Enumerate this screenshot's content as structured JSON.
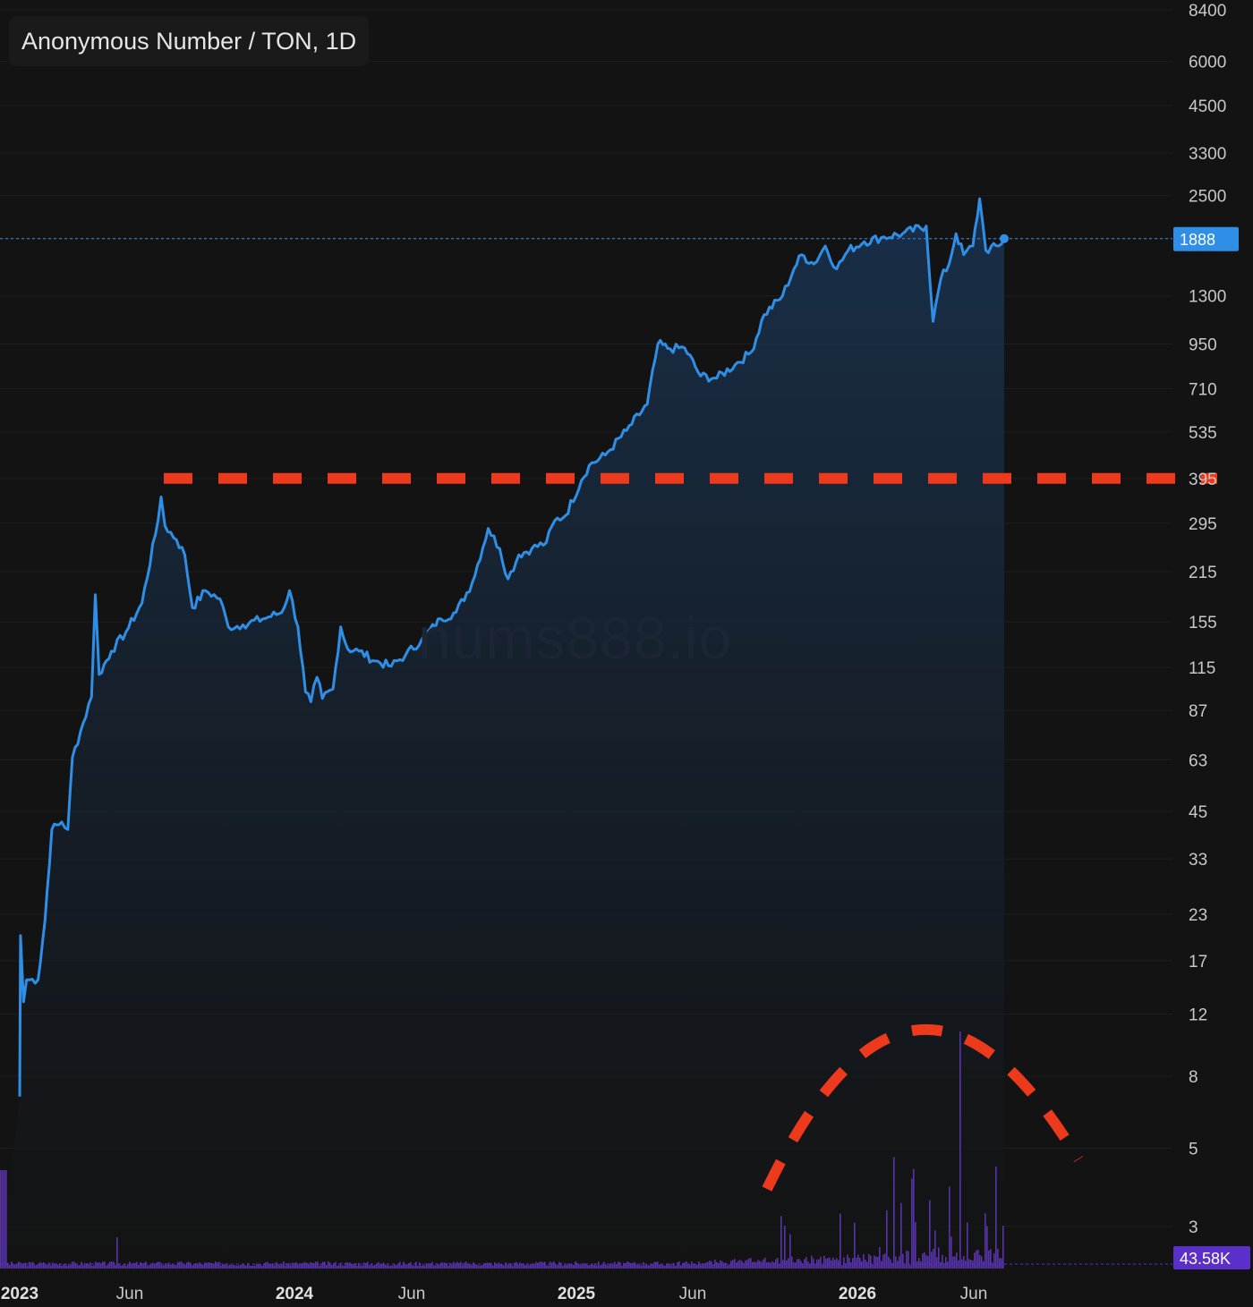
{
  "legend": {
    "title": "Anonymous Number / TON, 1D"
  },
  "watermark": "nums888.io",
  "colors": {
    "background": "#131313",
    "price_line": "#2f8fe6",
    "area_fill_top": "#1a3452",
    "volume": "#6a3ccf",
    "volume_tag": "#5b2fc9",
    "annotation": "#ee3a1c",
    "grid": "#1e1e1e"
  },
  "chart_data": {
    "type": "line",
    "y_scale": "log",
    "ylim": [
      2.4,
      8400
    ],
    "y_ticks": [
      "8400",
      "6000",
      "4500",
      "3300",
      "2500",
      "1888",
      "1300",
      "950",
      "710",
      "535",
      "395",
      "295",
      "215",
      "155",
      "115",
      "87",
      "63",
      "45",
      "33",
      "23",
      "17",
      "12",
      "8",
      "5",
      "3"
    ],
    "x_ticks": [
      {
        "label": "2023",
        "year": true
      },
      {
        "label": "Jun",
        "year": false
      },
      {
        "label": "2024",
        "year": true
      },
      {
        "label": "Jun",
        "year": false
      },
      {
        "label": "2025",
        "year": true
      },
      {
        "label": "Jun",
        "year": false
      },
      {
        "label": "2026",
        "year": true
      },
      {
        "label": "Jun",
        "year": false
      }
    ],
    "series": [
      {
        "values": [
          {
            "x": "2023-01-01",
            "y": 7
          },
          {
            "x": "2023-01-02",
            "y": 20
          },
          {
            "x": "2023-01-06",
            "y": 13
          },
          {
            "x": "2023-01-10",
            "y": 15
          },
          {
            "x": "2023-01-25",
            "y": 15
          },
          {
            "x": "2023-02-03",
            "y": 22
          },
          {
            "x": "2023-02-12",
            "y": 40
          },
          {
            "x": "2023-02-25",
            "y": 42
          },
          {
            "x": "2023-03-05",
            "y": 40
          },
          {
            "x": "2023-03-11",
            "y": 64
          },
          {
            "x": "2023-03-25",
            "y": 80
          },
          {
            "x": "2023-04-05",
            "y": 95
          },
          {
            "x": "2023-04-10",
            "y": 185
          },
          {
            "x": "2023-04-15",
            "y": 110
          },
          {
            "x": "2023-05-01",
            "y": 128
          },
          {
            "x": "2023-05-20",
            "y": 145
          },
          {
            "x": "2023-06-10",
            "y": 175
          },
          {
            "x": "2023-07-01",
            "y": 300
          },
          {
            "x": "2023-07-05",
            "y": 350
          },
          {
            "x": "2023-07-10",
            "y": 290
          },
          {
            "x": "2023-07-25",
            "y": 265
          },
          {
            "x": "2023-08-05",
            "y": 240
          },
          {
            "x": "2023-08-15",
            "y": 170
          },
          {
            "x": "2023-09-01",
            "y": 190
          },
          {
            "x": "2023-09-20",
            "y": 180
          },
          {
            "x": "2023-10-01",
            "y": 150
          },
          {
            "x": "2023-10-20",
            "y": 152
          },
          {
            "x": "2023-11-15",
            "y": 158
          },
          {
            "x": "2023-12-10",
            "y": 165
          },
          {
            "x": "2023-12-20",
            "y": 190
          },
          {
            "x": "2023-12-31",
            "y": 150
          },
          {
            "x": "2024-01-10",
            "y": 98
          },
          {
            "x": "2024-01-17",
            "y": 92
          },
          {
            "x": "2024-01-25",
            "y": 108
          },
          {
            "x": "2024-02-01",
            "y": 94
          },
          {
            "x": "2024-02-15",
            "y": 100
          },
          {
            "x": "2024-02-25",
            "y": 150
          },
          {
            "x": "2024-03-05",
            "y": 130
          },
          {
            "x": "2024-03-20",
            "y": 128
          },
          {
            "x": "2024-04-10",
            "y": 120
          },
          {
            "x": "2024-05-01",
            "y": 116
          },
          {
            "x": "2024-05-20",
            "y": 125
          },
          {
            "x": "2024-06-10",
            "y": 138
          },
          {
            "x": "2024-07-05",
            "y": 158
          },
          {
            "x": "2024-07-25",
            "y": 165
          },
          {
            "x": "2024-08-15",
            "y": 200
          },
          {
            "x": "2024-09-05",
            "y": 285
          },
          {
            "x": "2024-09-20",
            "y": 250
          },
          {
            "x": "2024-10-01",
            "y": 205
          },
          {
            "x": "2024-10-15",
            "y": 240
          },
          {
            "x": "2024-11-01",
            "y": 250
          },
          {
            "x": "2024-11-20",
            "y": 260
          },
          {
            "x": "2024-12-01",
            "y": 300
          },
          {
            "x": "2024-12-15",
            "y": 310
          },
          {
            "x": "2025-01-05",
            "y": 390
          },
          {
            "x": "2025-01-15",
            "y": 430
          },
          {
            "x": "2025-02-05",
            "y": 460
          },
          {
            "x": "2025-03-05",
            "y": 540
          },
          {
            "x": "2025-04-01",
            "y": 640
          },
          {
            "x": "2025-04-15",
            "y": 950
          },
          {
            "x": "2025-05-01",
            "y": 920
          },
          {
            "x": "2025-05-20",
            "y": 925
          },
          {
            "x": "2025-06-10",
            "y": 770
          },
          {
            "x": "2025-07-01",
            "y": 760
          },
          {
            "x": "2025-07-25",
            "y": 830
          },
          {
            "x": "2025-08-15",
            "y": 900
          },
          {
            "x": "2025-09-01",
            "y": 1150
          },
          {
            "x": "2025-09-25",
            "y": 1300
          },
          {
            "x": "2025-10-10",
            "y": 1550
          },
          {
            "x": "2025-10-20",
            "y": 1700
          },
          {
            "x": "2025-11-05",
            "y": 1600
          },
          {
            "x": "2025-11-20",
            "y": 1800
          },
          {
            "x": "2025-12-05",
            "y": 1550
          },
          {
            "x": "2025-12-20",
            "y": 1750
          },
          {
            "x": "2026-01-10",
            "y": 1850
          },
          {
            "x": "2026-02-01",
            "y": 1900
          },
          {
            "x": "2026-03-01",
            "y": 1950
          },
          {
            "x": "2026-04-01",
            "y": 2050
          },
          {
            "x": "2026-04-10",
            "y": 1100
          },
          {
            "x": "2026-04-20",
            "y": 1450
          },
          {
            "x": "2026-05-01",
            "y": 1600
          },
          {
            "x": "2026-05-10",
            "y": 1950
          },
          {
            "x": "2026-05-20",
            "y": 1700
          },
          {
            "x": "2026-06-01",
            "y": 1800
          },
          {
            "x": "2026-06-10",
            "y": 2450
          },
          {
            "x": "2026-06-18",
            "y": 1750
          },
          {
            "x": "2026-07-05",
            "y": 1800
          },
          {
            "x": "2026-07-12",
            "y": 1888
          }
        ]
      }
    ],
    "last_price": "1888",
    "volume_last": "43.58K",
    "annotations": [
      {
        "type": "horizontal-dashed-line",
        "y": 395
      },
      {
        "type": "dashed-arc"
      }
    ]
  }
}
